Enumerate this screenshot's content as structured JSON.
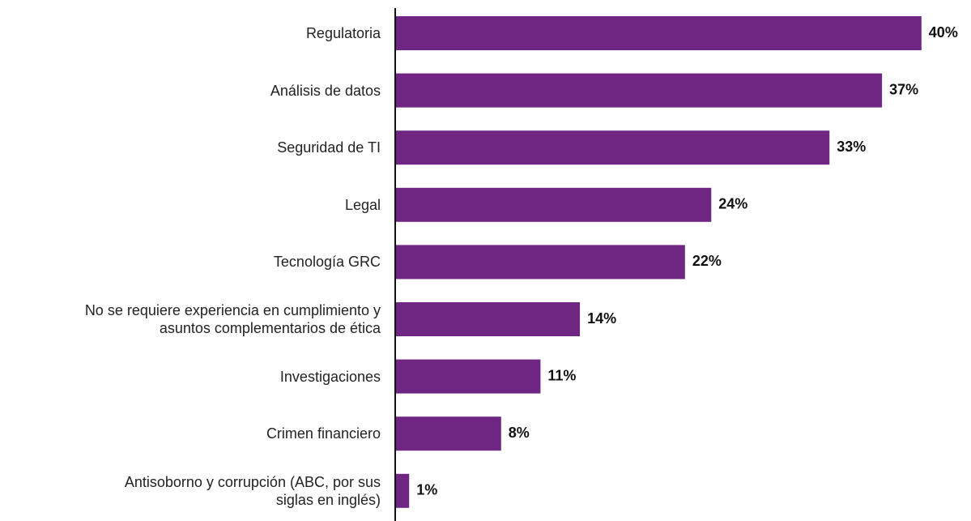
{
  "chart_data": {
    "type": "bar",
    "orientation": "horizontal",
    "categories": [
      "Regulatoria",
      "Análisis de datos",
      "Seguridad de TI",
      "Legal",
      "Tecnología GRC",
      "No se requiere experiencia en cumplimiento y\nasuntos complementarios de ética",
      "Investigaciones",
      "Crimen financiero",
      "Antisoborno y corrupción (ABC, por sus\nsiglas en inglés)"
    ],
    "values": [
      40,
      37,
      33,
      24,
      22,
      14,
      11,
      8,
      1
    ],
    "value_labels": [
      "40%",
      "37%",
      "33%",
      "24%",
      "22%",
      "14%",
      "11%",
      "8%",
      "1%"
    ],
    "color": "#6f2582"
  }
}
